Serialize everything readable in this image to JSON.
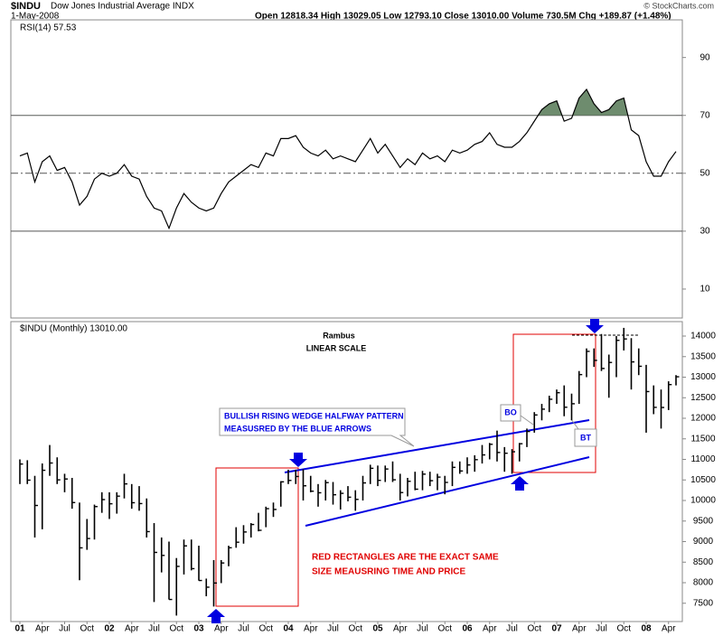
{
  "header": {
    "symbol": "$INDU",
    "name": "Dow Jones Industrial Average INDX",
    "date": "1-May-2008",
    "quote": "Open 12818.34  High 13029.05  Low 12793.10  Close 13010.00  Volume 730.5M  Chg +189.87 (+1.48%)",
    "copyright": "© StockCharts.com"
  },
  "chart_data": [
    {
      "type": "line",
      "title": "RSI(14) 57.53",
      "color": "#000000",
      "fill": "#6e8c6e",
      "values": [
        56,
        57,
        47,
        54,
        56,
        51,
        52,
        47,
        39,
        42,
        48,
        50,
        49,
        50,
        53,
        49,
        48,
        42,
        38,
        37,
        31,
        38,
        43,
        40,
        38,
        37,
        38,
        43,
        47,
        49,
        51,
        53,
        52,
        57,
        56,
        62,
        62,
        63,
        59,
        57,
        56,
        58,
        55,
        56,
        55,
        54,
        58,
        62,
        57,
        60,
        56,
        52,
        55,
        53,
        57,
        55,
        56,
        54,
        58,
        57,
        58,
        60,
        61,
        64,
        60,
        59,
        59,
        61,
        64,
        68,
        72,
        74,
        75,
        68,
        69,
        76,
        79,
        74,
        71,
        72,
        75,
        76,
        65,
        63,
        54,
        49,
        49,
        54,
        57.53
      ],
      "ylim": [
        0,
        103
      ],
      "yticks": [
        10,
        30,
        50,
        70,
        90
      ],
      "levels": [
        30,
        50,
        70
      ],
      "shade_above": 70
    },
    {
      "type": "ohlc",
      "title": "$INDU (Monthly) 13010.00",
      "color": "#000000",
      "categories": [
        "01",
        null,
        null,
        "Apr",
        null,
        null,
        "Jul",
        null,
        null,
        "Oct",
        null,
        null,
        "02",
        null,
        null,
        "Apr",
        null,
        null,
        "Jul",
        null,
        null,
        "Oct",
        null,
        null,
        "03",
        null,
        null,
        "Apr",
        null,
        null,
        "Jul",
        null,
        null,
        "Oct",
        null,
        null,
        "04",
        null,
        null,
        "Apr",
        null,
        null,
        "Jul",
        null,
        null,
        "Oct",
        null,
        null,
        "05",
        null,
        null,
        "Apr",
        null,
        null,
        "Jul",
        null,
        null,
        "Oct",
        null,
        null,
        "06",
        null,
        null,
        "Apr",
        null,
        null,
        "Jul",
        null,
        null,
        "Oct",
        null,
        null,
        "07",
        null,
        null,
        "Apr",
        null,
        null,
        "Jul",
        null,
        null,
        "Oct",
        null,
        null,
        "08",
        null,
        null,
        "Apr",
        null
      ],
      "high": [
        11000,
        10980,
        10600,
        10900,
        11350,
        11050,
        10650,
        10550,
        9950,
        9550,
        9900,
        10200,
        10200,
        10200,
        10650,
        10400,
        10350,
        10050,
        9450,
        9100,
        9000,
        8600,
        9050,
        9050,
        8900,
        8100,
        8550,
        8550,
        8900,
        9350,
        9400,
        9450,
        9700,
        9850,
        9950,
        10470,
        10750,
        10750,
        10760,
        10600,
        10400,
        10500,
        10450,
        10250,
        10350,
        10250,
        10600,
        10870,
        10850,
        10850,
        10950,
        10650,
        10550,
        10700,
        10720,
        10700,
        10650,
        10600,
        10950,
        10950,
        11050,
        11100,
        11350,
        11400,
        11700,
        11300,
        11250,
        11400,
        11750,
        12150,
        12350,
        12550,
        12700,
        12800,
        12600,
        13150,
        13700,
        13700,
        14050,
        13550,
        14000,
        14200,
        13950,
        13700,
        13300,
        12800,
        12700,
        12900,
        13050
      ],
      "low": [
        10400,
        10400,
        9100,
        9300,
        10600,
        10400,
        10200,
        9800,
        8060,
        8800,
        9050,
        9700,
        9550,
        9680,
        10050,
        9800,
        9750,
        9100,
        7530,
        8250,
        7590,
        7200,
        8200,
        8300,
        8050,
        7670,
        7420,
        7990,
        8400,
        8850,
        8950,
        9100,
        9250,
        9350,
        9600,
        9850,
        10400,
        10400,
        10000,
        10200,
        9850,
        10000,
        9900,
        9780,
        9980,
        9750,
        10000,
        10400,
        10350,
        10450,
        10450,
        10000,
        10100,
        10250,
        10250,
        10350,
        10250,
        10150,
        10350,
        10650,
        10650,
        10700,
        10900,
        11000,
        10950,
        10700,
        10650,
        10950,
        11300,
        11650,
        11950,
        12150,
        12350,
        12050,
        11950,
        12350,
        13000,
        13250,
        13150,
        12500,
        13000,
        13650,
        12700,
        13050,
        11650,
        12100,
        11750,
        12200,
        12800
      ],
      "close": [
        10887,
        10495,
        9879,
        10735,
        10912,
        10502,
        10523,
        9950,
        8848,
        9075,
        9852,
        10022,
        9920,
        10106,
        10404,
        9946,
        9925,
        9243,
        8737,
        8664,
        7592,
        8397,
        8896,
        8342,
        8054,
        7891,
        7992,
        8480,
        8850,
        8985,
        9234,
        9416,
        9275,
        9801,
        9782,
        10454,
        10488,
        10584,
        10358,
        10226,
        10188,
        10435,
        10140,
        10174,
        10080,
        10027,
        10428,
        10783,
        10490,
        10766,
        10504,
        10193,
        10467,
        10275,
        10641,
        10482,
        10569,
        10440,
        10806,
        10718,
        10865,
        10993,
        11109,
        11367,
        11168,
        11150,
        11186,
        11381,
        11679,
        12081,
        12222,
        12463,
        12622,
        12269,
        12354,
        13063,
        13628,
        13409,
        13212,
        13358,
        13896,
        13930,
        13372,
        13265,
        12650,
        12266,
        12263,
        12820,
        13010
      ],
      "ylim": [
        7055,
        14352
      ],
      "yticks": [
        7500,
        8000,
        8500,
        9000,
        9500,
        10000,
        10500,
        11000,
        11500,
        12000,
        12500,
        13000,
        13500,
        14000
      ],
      "annotations": {
        "author": "Rambus",
        "scale": "LINEAR SCALE",
        "wedge": [
          "BULLISH RISING WEDGE HALFWAY PATTERN",
          "MEASUSRED BY THE BLUE ARROWS"
        ],
        "rectangles": [
          "RED RECTANGLES ARE THE EXACT SAME",
          "SIZE MEAUSRING TIME AND PRICE"
        ],
        "breakout": "BO",
        "backtest": "BT"
      }
    }
  ]
}
